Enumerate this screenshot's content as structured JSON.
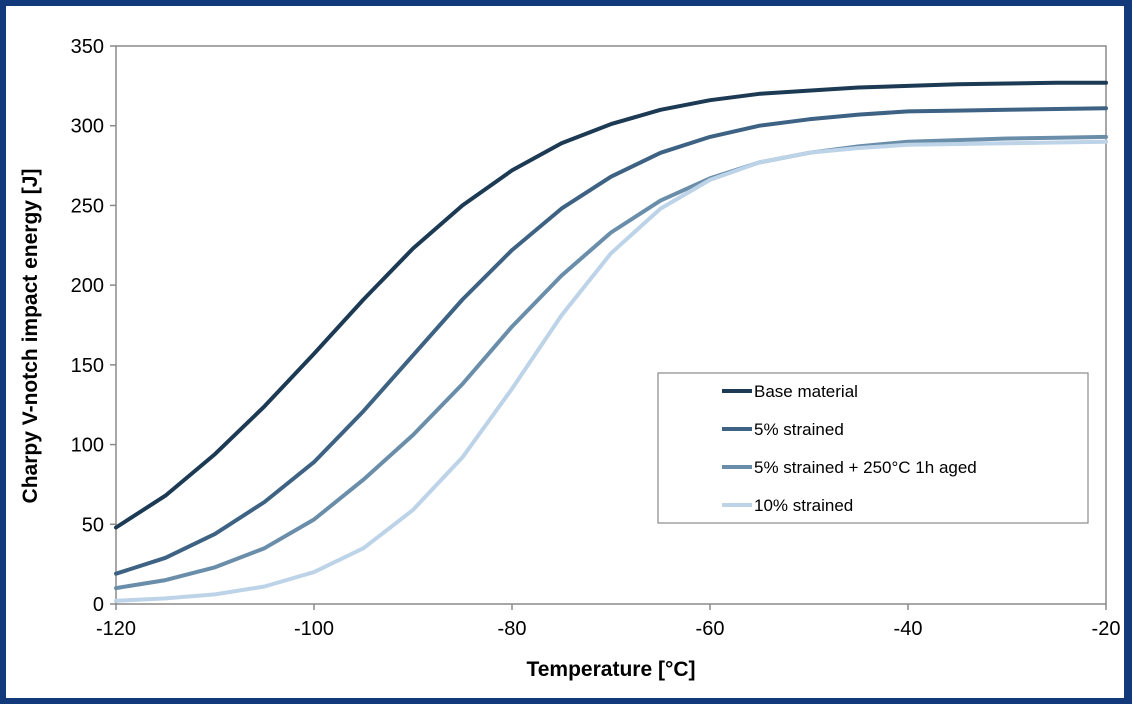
{
  "chart_data": {
    "type": "line",
    "title": "",
    "xlabel": "Temperature [°C]",
    "ylabel": "Charpy V-notch impact energy [J]",
    "xlim": [
      -120,
      -20
    ],
    "ylim": [
      0,
      350
    ],
    "xticks": [
      -120,
      -100,
      -80,
      -60,
      -40,
      -20
    ],
    "yticks": [
      0,
      50,
      100,
      150,
      200,
      250,
      300,
      350
    ],
    "xtick_labels": [
      "-120",
      "-100",
      "-80",
      "-60",
      "-40",
      "-20"
    ],
    "ytick_labels": [
      "0",
      "50",
      "100",
      "150",
      "200",
      "250",
      "300",
      "350"
    ],
    "grid": false,
    "legend_position": "right-middle",
    "x": [
      -120,
      -115,
      -110,
      -105,
      -100,
      -95,
      -90,
      -85,
      -80,
      -75,
      -70,
      -65,
      -60,
      -55,
      -50,
      -45,
      -40,
      -35,
      -30,
      -25,
      -20
    ],
    "series": [
      {
        "name": "Base material",
        "color": "#1c3a54",
        "values": [
          48,
          68,
          94,
          124,
          157,
          191,
          223,
          250,
          272,
          289,
          301,
          310,
          316,
          320,
          322,
          324,
          325,
          326,
          326.5,
          327,
          327
        ]
      },
      {
        "name": "5% strained",
        "color": "#3d6283",
        "values": [
          19,
          29,
          44,
          64,
          89,
          121,
          156,
          191,
          222,
          248,
          268,
          283,
          293,
          300,
          304,
          307,
          309,
          309.5,
          310,
          310.5,
          311
        ]
      },
      {
        "name": "5% strained + 250°C 1h aged",
        "color": "#6a8eaa",
        "values": [
          10,
          15,
          23,
          35,
          53,
          78,
          106,
          138,
          174,
          206,
          233,
          253,
          267,
          277,
          283,
          287,
          290,
          291,
          292,
          292.5,
          293
        ]
      },
      {
        "name": "10% strained",
        "color": "#bdd3e8",
        "values": [
          2,
          3.5,
          6,
          11,
          20,
          35,
          59,
          92,
          135,
          181,
          220,
          248,
          266,
          277,
          283,
          286,
          288,
          288.5,
          289,
          289.5,
          290
        ]
      }
    ]
  }
}
